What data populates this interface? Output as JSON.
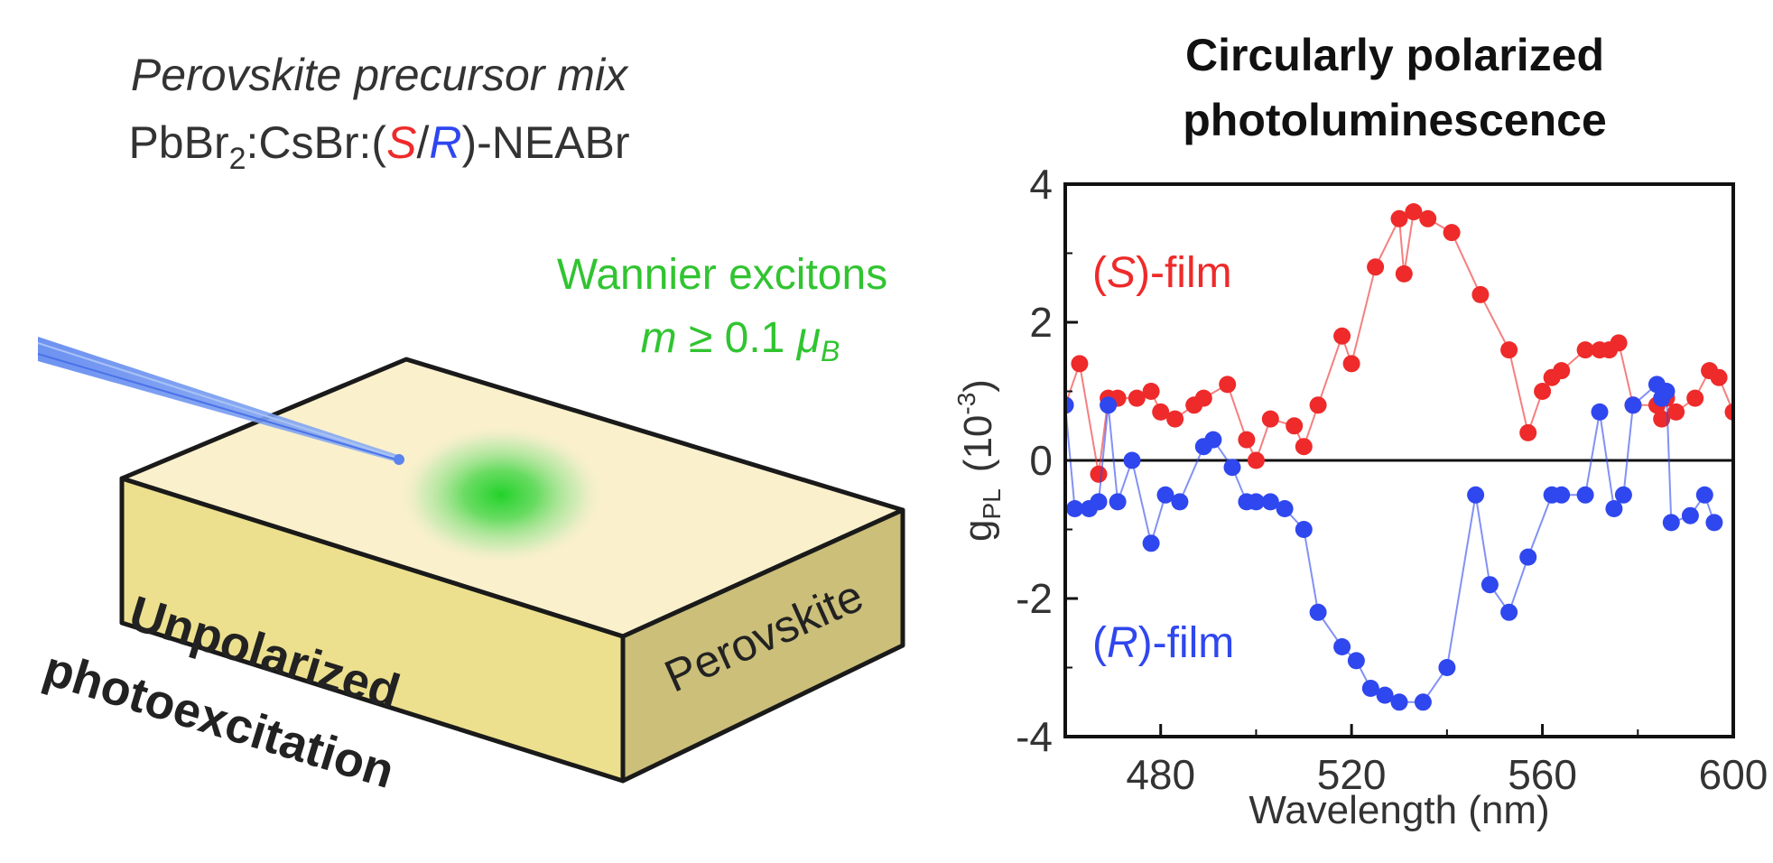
{
  "left_panel": {
    "precursor_title": "Perovskite precursor mix",
    "formula": {
      "a": "PbBr",
      "sub": "2",
      "b": ":CsBr:(",
      "s": "S",
      "slash": "/",
      "r": "R",
      "c": ")-NEABr"
    },
    "exciton": {
      "line1": "Wannier excitons",
      "m": "m",
      "rel": " ≥ 0.1 ",
      "mu": "μ",
      "mu_sub": "B"
    },
    "block_side_label": "Perovskite",
    "excitation_label_line1": "Unpolarized",
    "excitation_label_line2": "photoexcitation",
    "colors": {
      "green": "#31c431",
      "red": "#ee2a2a",
      "blue": "#2f47ee",
      "block_top": "#faf0cc",
      "block_front": "#ece08e",
      "block_side": "#cbbf7a",
      "beam": "#6f95ee"
    }
  },
  "chart_data": {
    "type": "scatter",
    "title": "Circularly polarized photoluminescence",
    "xlabel": "Wavelength (nm)",
    "ylabel": "g_PL (10^-3)",
    "ylabel_parts": {
      "g": "g",
      "g_sub": "PL",
      "unit_open": "(10",
      "unit_sup": "-3",
      "unit_close": ")"
    },
    "xlim": [
      460,
      600
    ],
    "ylim": [
      -4,
      4
    ],
    "xticks": [
      480,
      520,
      560,
      600
    ],
    "yticks": [
      -4,
      -2,
      0,
      2,
      4
    ],
    "zero_line": true,
    "grid": false,
    "series": [
      {
        "name": "(S)-film",
        "label_paren_open": "(",
        "label_letter": "S",
        "label_rest": ")-film",
        "color": "#ee2a2a",
        "x": [
          460,
          463,
          467,
          469,
          471,
          475,
          478,
          480,
          483,
          487,
          489,
          494,
          498,
          500,
          503,
          508,
          510,
          513,
          518,
          520,
          525,
          530,
          531,
          533,
          536,
          541,
          547,
          553,
          557,
          560,
          562,
          564,
          569,
          572,
          574,
          576,
          579,
          584,
          585,
          586,
          588,
          592,
          595,
          597,
          600
        ],
        "y": [
          0.8,
          1.4,
          -0.2,
          0.9,
          0.9,
          0.9,
          1.0,
          0.7,
          0.6,
          0.8,
          0.9,
          1.1,
          0.3,
          0.0,
          0.6,
          0.5,
          0.2,
          0.8,
          1.8,
          1.4,
          2.8,
          3.5,
          2.7,
          3.6,
          3.5,
          3.3,
          2.4,
          1.6,
          0.4,
          1.0,
          1.2,
          1.3,
          1.6,
          1.6,
          1.6,
          1.7,
          0.8,
          0.8,
          0.6,
          0.9,
          0.7,
          0.9,
          1.3,
          1.2,
          0.7
        ]
      },
      {
        "name": "(R)-film",
        "label_paren_open": "(",
        "label_letter": "R",
        "label_rest": ")-film",
        "color": "#2f47ee",
        "x": [
          460,
          462,
          465,
          467,
          469,
          471,
          474,
          478,
          481,
          484,
          489,
          491,
          495,
          498,
          500,
          503,
          506,
          510,
          513,
          518,
          521,
          524,
          527,
          530,
          535,
          540,
          546,
          549,
          553,
          557,
          562,
          564,
          569,
          572,
          575,
          577,
          579,
          584,
          585,
          586,
          587,
          591,
          594,
          596
        ],
        "y": [
          0.8,
          -0.7,
          -0.7,
          -0.6,
          0.8,
          -0.6,
          0.0,
          -1.2,
          -0.5,
          -0.6,
          0.2,
          0.3,
          -0.1,
          -0.6,
          -0.6,
          -0.6,
          -0.7,
          -1.0,
          -2.2,
          -2.7,
          -2.9,
          -3.3,
          -3.4,
          -3.5,
          -3.5,
          -3.0,
          -0.5,
          -1.8,
          -2.2,
          -1.4,
          -0.5,
          -0.5,
          -0.5,
          0.7,
          -0.7,
          -0.5,
          0.8,
          1.1,
          0.9,
          1.0,
          -0.9,
          -0.8,
          -0.5,
          -0.9
        ]
      }
    ]
  }
}
